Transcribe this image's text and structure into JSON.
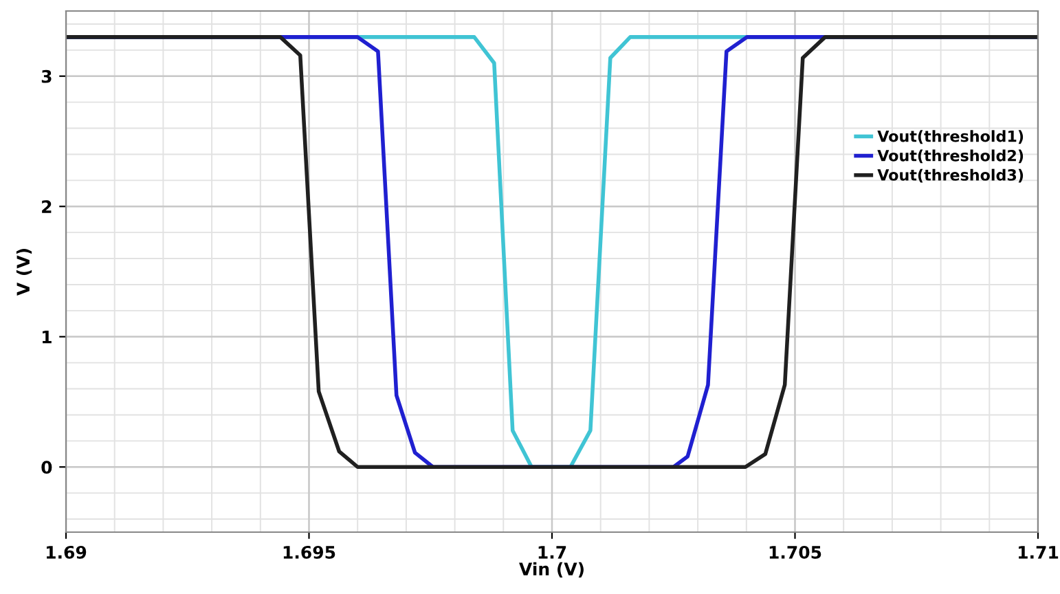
{
  "chart_data": {
    "type": "line",
    "xlabel": "Vin (V)",
    "ylabel": "V (V)",
    "xlim": [
      1.69,
      1.71
    ],
    "xticks": [
      {
        "value": 1.69,
        "label": "1.69"
      },
      {
        "value": 1.695,
        "label": "1.695"
      },
      {
        "value": 1.7,
        "label": "1.7"
      },
      {
        "value": 1.705,
        "label": "1.705"
      },
      {
        "value": 1.71,
        "label": "1.71"
      }
    ],
    "ylim": [
      -0.5,
      3.5
    ],
    "yticks": [
      0,
      1,
      2,
      3
    ],
    "grid": true,
    "legend": "right",
    "marker": "none",
    "line_style": "solid",
    "series": [
      {
        "name": "Vout(threshold1)",
        "color": "#40c4d4",
        "x": [
          1.69,
          1.6984,
          1.69881,
          1.69919,
          1.69958,
          1.70038,
          1.70079,
          1.7012,
          1.70161,
          1.71
        ],
        "values": [
          3.3,
          3.3,
          3.1,
          0.28,
          0,
          0,
          0.28,
          3.14,
          3.3,
          3.3
        ]
      },
      {
        "name": "Vout(threshold2)",
        "color": "#2020d0",
        "x": [
          1.69,
          1.696,
          1.69642,
          1.6968,
          1.69718,
          1.69755,
          1.7025,
          1.70279,
          1.70321,
          1.70359,
          1.70401,
          1.71
        ],
        "values": [
          3.3,
          3.3,
          3.19,
          0.55,
          0.11,
          0,
          0,
          0.08,
          0.63,
          3.19,
          3.3,
          3.3
        ]
      },
      {
        "name": "Vout(threshold3)",
        "color": "#202020",
        "x": [
          1.69,
          1.69441,
          1.69482,
          1.6952,
          1.69562,
          1.696,
          1.70398,
          1.70439,
          1.70479,
          1.70516,
          1.70562,
          1.71
        ],
        "values": [
          3.3,
          3.3,
          3.16,
          0.58,
          0.12,
          0,
          0,
          0.1,
          0.63,
          3.14,
          3.3,
          3.3
        ]
      }
    ]
  }
}
